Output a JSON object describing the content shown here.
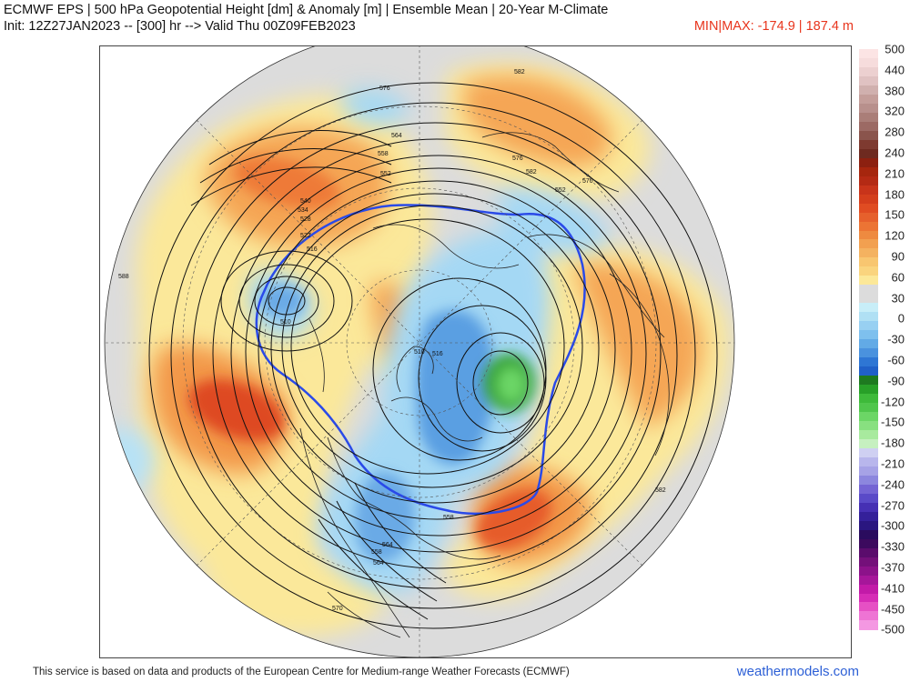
{
  "header": {
    "title": "ECMWF EPS | 500 hPa Geopotential Height [dm] & Anomaly [m] | Ensemble Mean | 20-Year M-Climate",
    "init_line": "Init: 12Z27JAN2023 -- [300] hr --> Valid Thu 00Z09FEB2023",
    "minmax": "MIN|MAX: -174.9 | 187.4 m"
  },
  "colorbar": {
    "labels": [
      "500",
      "440",
      "380",
      "320",
      "280",
      "240",
      "210",
      "180",
      "150",
      "120",
      "90",
      "60",
      "30",
      "0",
      "-30",
      "-60",
      "-90",
      "-120",
      "-150",
      "-180",
      "-210",
      "-240",
      "-270",
      "-300",
      "-330",
      "-370",
      "-410",
      "-450",
      "-500"
    ],
    "colors": [
      "#fce4e4",
      "#f0d4d4",
      "#c8a8a8",
      "#b48c88",
      "#a06e6a",
      "#8c4f48",
      "#7a1e14",
      "#a01e10",
      "#c8341e",
      "#e04c26",
      "#ec7a3c",
      "#f4a45c",
      "#f8cc78",
      "#fef4a6",
      "#dcdcdc",
      "#b4e4f4",
      "#8ccaf0",
      "#5aa2e2",
      "#2c70d4",
      "#1e8c24",
      "#36b436",
      "#5ed25a",
      "#98e690",
      "#cceec8",
      "#c2c2ee",
      "#9a96e4",
      "#7060d4",
      "#4632b8",
      "#2a1890",
      "#320858",
      "#6c1072",
      "#a0168c",
      "#d01eaa",
      "#f06ad2",
      "#f8a8e8"
    ],
    "segment_colors": [
      [
        "#fce4e4",
        "#f6dcdc"
      ],
      [
        "#ecd0d0",
        "#e0c2c2"
      ],
      [
        "#d0b0ae",
        "#c49e9a"
      ],
      [
        "#b8908c",
        "#aa7e78"
      ],
      [
        "#9c6a64",
        "#8a544c"
      ],
      [
        "#7e3a30",
        "#6e2a20"
      ],
      [
        "#8c2010",
        "#a6260e"
      ],
      [
        "#b42a14",
        "#c8341a"
      ],
      [
        "#d43e1c",
        "#e04c22"
      ],
      [
        "#e6602c",
        "#ec7434"
      ],
      [
        "#ee8a40",
        "#f2a050"
      ],
      [
        "#f4b260",
        "#f8c670"
      ],
      [
        "#fad47e",
        "#fce898"
      ],
      [
        "#dcdcdc",
        "#dcdcdc"
      ],
      [
        "#c8eef8",
        "#b0e0f4"
      ],
      [
        "#98d0f2",
        "#7ec0ee"
      ],
      [
        "#62aae6",
        "#4a92de"
      ],
      [
        "#2e76d4",
        "#2060c8"
      ],
      [
        "#1e7a20",
        "#28a028"
      ],
      [
        "#3eba3a",
        "#50c64c"
      ],
      [
        "#6cd666",
        "#88e080"
      ],
      [
        "#a8ea9e",
        "#c6f0c0"
      ],
      [
        "#cfd0f2",
        "#b8b6ec"
      ],
      [
        "#a6a2e6",
        "#8c86de"
      ],
      [
        "#7464d4",
        "#5a4ac8"
      ],
      [
        "#4630b4",
        "#34209a"
      ],
      [
        "#2a1680",
        "#2a0c5e"
      ],
      [
        "#3c0a5e",
        "#5a0c6c"
      ],
      [
        "#74107a",
        "#8c128a"
      ],
      [
        "#a6169a",
        "#c21aa8"
      ],
      [
        "#d62cb6",
        "#e650c4"
      ],
      [
        "#ee74d4",
        "#f498e2"
      ]
    ]
  },
  "map": {
    "contour_labels": [
      "582",
      "576",
      "564",
      "558",
      "552",
      "540",
      "534",
      "528",
      "522",
      "516",
      "510",
      "516",
      "510",
      "558",
      "576",
      "582",
      "570",
      "552",
      "564",
      "582",
      "588",
      "558",
      "564",
      "570"
    ],
    "land_color": "#e2e2e2"
  },
  "footer": {
    "attribution": "This service is based on data and products of the European Centre for Medium-range Weather Forecasts (ECMWF)",
    "website": "weathermodels.com"
  }
}
